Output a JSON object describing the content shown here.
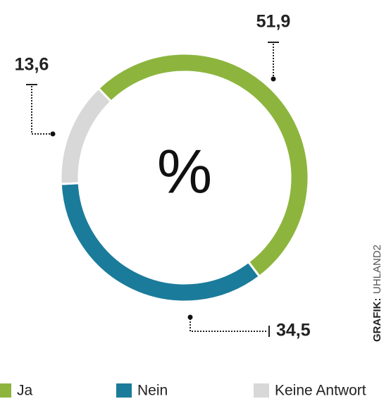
{
  "chart_data": {
    "type": "donut",
    "center_label": "%",
    "categories": [
      "Ja",
      "Nein",
      "Keine Antwort"
    ],
    "values": [
      51.9,
      34.5,
      13.6
    ],
    "value_labels": [
      "51,9",
      "34,5",
      "13,6"
    ],
    "colors": [
      "#8db53e",
      "#1b7b9b",
      "#d8d8d8"
    ],
    "credit_label": "GRAFIK:",
    "credit": "UHLAND2"
  }
}
